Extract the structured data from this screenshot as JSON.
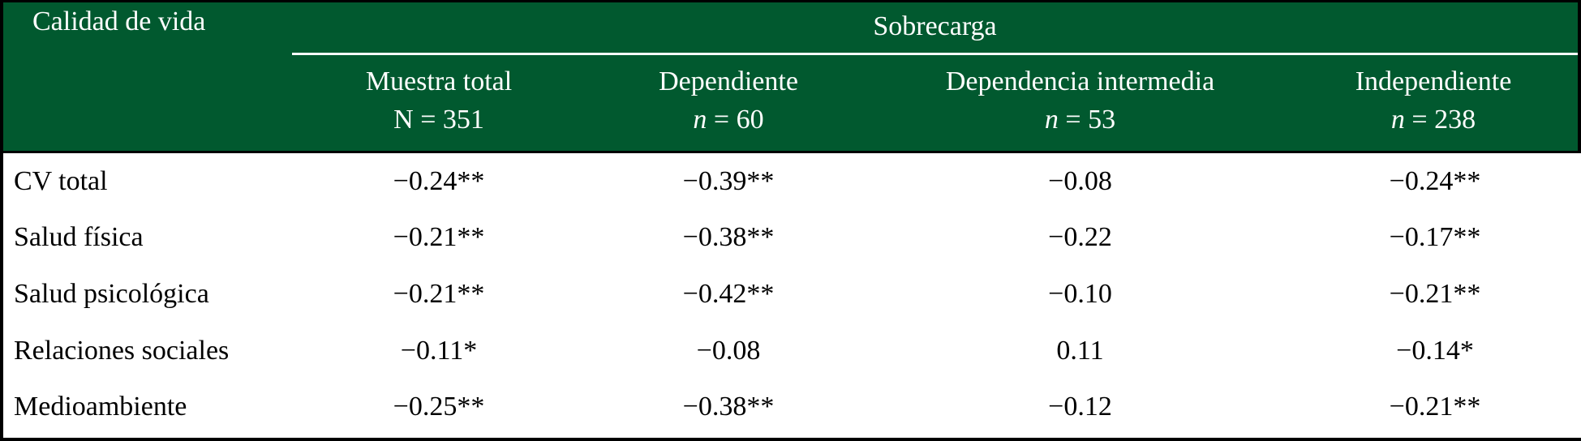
{
  "table": {
    "corner_label": "Calidad de vida",
    "spanner": "Sobrecarga",
    "columns": [
      {
        "title": "Muestra total",
        "n_symbol": "N",
        "n_rest": " = 351"
      },
      {
        "title": "Dependiente",
        "n_symbol": "n",
        "n_rest": " = 60"
      },
      {
        "title": "Dependencia intermedia",
        "n_symbol": "n",
        "n_rest": " = 53"
      },
      {
        "title": "Independiente",
        "n_symbol": "n",
        "n_rest": " = 238"
      }
    ],
    "rows": [
      {
        "label": "CV total",
        "values": [
          "−0.24**",
          "−0.39**",
          "−0.08",
          "−0.24**"
        ]
      },
      {
        "label": "Salud física",
        "values": [
          "−0.21**",
          "−0.38**",
          "−0.22",
          "−0.17**"
        ]
      },
      {
        "label": "Salud psicológica",
        "values": [
          "−0.21**",
          "−0.42**",
          "−0.10",
          "−0.21**"
        ]
      },
      {
        "label": "Relaciones sociales",
        "values": [
          "−0.11*",
          "−0.08",
          "0.11",
          "−0.14*"
        ]
      },
      {
        "label": "Medioambiente",
        "values": [
          "−0.25**",
          "−0.38**",
          "−0.12",
          "−0.21**"
        ]
      }
    ]
  },
  "colors": {
    "header_bg": "#01592F",
    "header_text": "#FFFFFF",
    "body_text": "#000000",
    "border": "#000000",
    "spanner_rule": "#FFFFFF"
  }
}
